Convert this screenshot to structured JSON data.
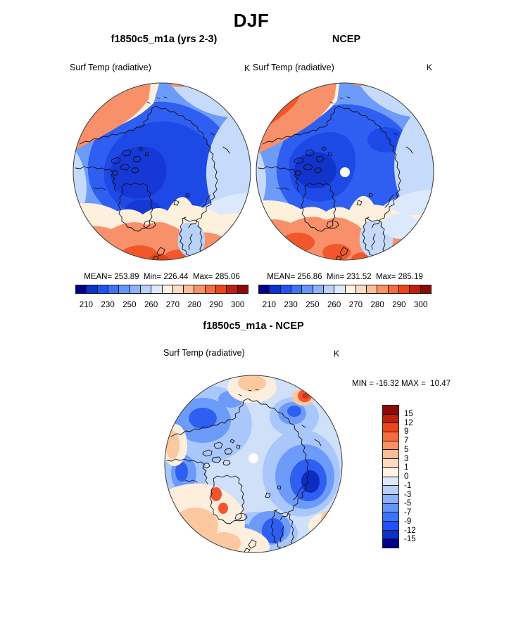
{
  "figure": {
    "season_title": "DJF",
    "background": "#ffffff"
  },
  "panels": {
    "model": {
      "title": "f1850c5_m1a (yrs 2-3)",
      "field_label": "Surf Temp (radiative)",
      "units": "K",
      "stats_line": "MEAN= 253.89  Min= 226.44  Max= 285.06"
    },
    "obs": {
      "title": "NCEP",
      "field_label": "Surf Temp (radiative)",
      "units": "K",
      "stats_line": "MEAN= 256.86  Min= 231.52  Max= 285.19"
    },
    "diff": {
      "title": "f1850c5_m1a - NCEP",
      "field_label": "Surf Temp (radiative)",
      "units": "K",
      "stats_line": "MIN = -16.32 MAX =  10.47"
    }
  },
  "colorbar_abs": {
    "colors": [
      "#00008b",
      "#0a32cd",
      "#2151fa",
      "#3c73fb",
      "#6495fc",
      "#8cb1fd",
      "#b8d0fb",
      "#dce9fc",
      "#fdf2e3",
      "#fddcc2",
      "#fcbd97",
      "#fa9263",
      "#f76b3c",
      "#ee4517",
      "#c01f0e",
      "#8f0a06"
    ],
    "tick_labels": [
      "210",
      "230",
      "250",
      "260",
      "270",
      "280",
      "290",
      "300"
    ]
  },
  "colorbar_diff": {
    "colors": [
      "#8f0a06",
      "#c01f0e",
      "#ee4517",
      "#f76b3c",
      "#fa9263",
      "#fcbd97",
      "#fddcc2",
      "#fdf2e3",
      "#dce9fc",
      "#b8d0fb",
      "#8cb1fd",
      "#6495fc",
      "#3c73fb",
      "#2151fa",
      "#0a32cd",
      "#00008b"
    ],
    "tick_labels": [
      "15",
      "12",
      "9",
      "7",
      "5",
      "3",
      "1",
      "0",
      "-1",
      "-3",
      "-5",
      "-7",
      "-9",
      "-12",
      "-15"
    ]
  },
  "chart_data": [
    {
      "type": "heatmap",
      "subtype": "north-polar-stereographic-contour-map",
      "season": "DJF",
      "title": "f1850c5_m1a (yrs 2-3)",
      "variable": "Surf Temp (radiative)",
      "units": "K",
      "stats": {
        "mean": 253.89,
        "min": 226.44,
        "max": 285.06
      },
      "contour_levels": [
        210,
        220,
        230,
        240,
        250,
        255,
        260,
        265,
        270,
        275,
        280,
        285,
        290,
        295,
        300
      ],
      "colorbar_tick_labels": [
        210,
        230,
        250,
        260,
        270,
        280,
        290,
        300
      ],
      "palette": [
        "#00008b",
        "#0a32cd",
        "#2151fa",
        "#3c73fb",
        "#6495fc",
        "#8cb1fd",
        "#b8d0fb",
        "#dce9fc",
        "#fdf2e3",
        "#fddcc2",
        "#fcbd97",
        "#fa9263",
        "#f76b3c",
        "#ee4517",
        "#c01f0e",
        "#8f0a06"
      ],
      "legend_position": "below",
      "grid": false
    },
    {
      "type": "heatmap",
      "subtype": "north-polar-stereographic-contour-map",
      "season": "DJF",
      "title": "NCEP",
      "variable": "Surf Temp (radiative)",
      "units": "K",
      "stats": {
        "mean": 256.86,
        "min": 231.52,
        "max": 285.19
      },
      "contour_levels": [
        210,
        220,
        230,
        240,
        250,
        255,
        260,
        265,
        270,
        275,
        280,
        285,
        290,
        295,
        300
      ],
      "colorbar_tick_labels": [
        210,
        230,
        250,
        260,
        270,
        280,
        290,
        300
      ],
      "palette": [
        "#00008b",
        "#0a32cd",
        "#2151fa",
        "#3c73fb",
        "#6495fc",
        "#8cb1fd",
        "#b8d0fb",
        "#dce9fc",
        "#fdf2e3",
        "#fddcc2",
        "#fcbd97",
        "#fa9263",
        "#f76b3c",
        "#ee4517",
        "#c01f0e",
        "#8f0a06"
      ],
      "legend_position": "below",
      "grid": false,
      "pole_hole": true
    },
    {
      "type": "heatmap",
      "subtype": "north-polar-stereographic-contour-map",
      "season": "DJF",
      "title": "f1850c5_m1a - NCEP",
      "variable": "Surf Temp (radiative)",
      "units": "K",
      "stats": {
        "min": -16.32,
        "max": 10.47
      },
      "contour_levels": [
        -15,
        -12,
        -9,
        -7,
        -5,
        -3,
        -1,
        0,
        1,
        3,
        5,
        7,
        9,
        12,
        15
      ],
      "colorbar_tick_labels": [
        15,
        12,
        9,
        7,
        5,
        3,
        1,
        0,
        -1,
        -3,
        -5,
        -7,
        -9,
        -12,
        -15
      ],
      "palette_top_to_bottom": [
        "#8f0a06",
        "#c01f0e",
        "#ee4517",
        "#f76b3c",
        "#fa9263",
        "#fcbd97",
        "#fddcc2",
        "#fdf2e3",
        "#dce9fc",
        "#b8d0fb",
        "#8cb1fd",
        "#6495fc",
        "#3c73fb",
        "#2151fa",
        "#0a32cd",
        "#00008b"
      ],
      "legend_position": "right",
      "grid": false,
      "pole_hole": true
    }
  ]
}
